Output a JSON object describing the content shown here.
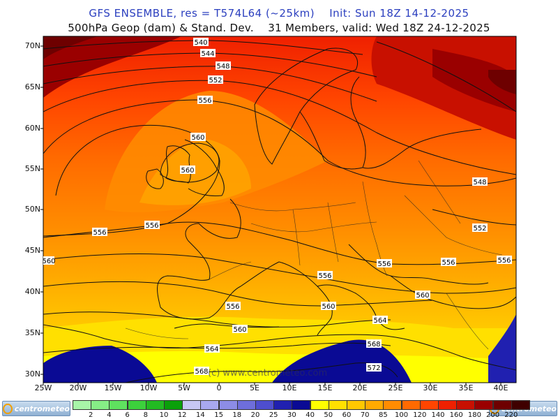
{
  "header": {
    "line1": "GFS ENSEMBLE, res = T574L64 (~25km)    Init: Sun 18Z 14-12-2025",
    "line2": "500hPa Geop (dam) & Stand. Dev.    31 Members, valid: Wed 18Z 24-12-2025"
  },
  "axes": {
    "lat_labels": [
      "70N",
      "65N",
      "60N",
      "55N",
      "50N",
      "45N",
      "40N",
      "35N",
      "30N"
    ],
    "lon_labels": [
      "25W",
      "20W",
      "15W",
      "10W",
      "5W",
      "0",
      "5E",
      "10E",
      "15E",
      "20E",
      "25E",
      "30E",
      "35E",
      "40E"
    ]
  },
  "contour_labels": [
    "540",
    "544",
    "548",
    "552",
    "556",
    "560",
    "560",
    "556",
    "556",
    "556",
    "556",
    "560",
    "556",
    "556",
    "560",
    "564",
    "568",
    "572",
    "548",
    "552",
    "556",
    "556",
    "556",
    "560",
    "560",
    "564",
    "568"
  ],
  "watermark": "(c) www.centrometeo.com",
  "legend": {
    "values": [
      "2",
      "4",
      "6",
      "8",
      "10",
      "12",
      "14",
      "15",
      "18",
      "20",
      "25",
      "30",
      "40",
      "50",
      "60",
      "70",
      "85",
      "100",
      "120",
      "140",
      "160",
      "180",
      "200",
      "220"
    ],
    "colors": [
      "#a8f5a8",
      "#86ee86",
      "#5fe25f",
      "#3cd13c",
      "#22bb22",
      "#0aa00a",
      "#c8c8f4",
      "#a8a8ee",
      "#8c8ce6",
      "#6e6edb",
      "#4e4ecf",
      "#2020b0",
      "#0a0a94",
      "#ffff00",
      "#ffe000",
      "#ffc800",
      "#ffaa00",
      "#ff8c00",
      "#ff6a00",
      "#ff4500",
      "#ef2000",
      "#c81000",
      "#9a0000",
      "#6e0000",
      "#3f0000"
    ],
    "brand_left": "centrometeo",
    "brand_right": "centrometeo"
  }
}
